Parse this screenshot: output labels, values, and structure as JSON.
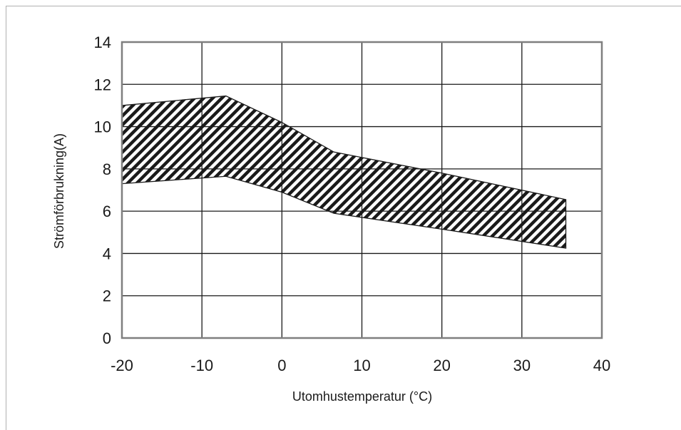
{
  "chart_data": {
    "type": "area",
    "xlabel": "Utomhustemperatur (°C)",
    "ylabel": "Strömförbrukning(A)",
    "xlim": [
      -20,
      40
    ],
    "ylim": [
      0,
      14
    ],
    "x_ticks": [
      "-20",
      "-10",
      "0",
      "10",
      "20",
      "30",
      "40"
    ],
    "y_ticks": [
      "0",
      "2",
      "4",
      "6",
      "8",
      "10",
      "12",
      "14"
    ],
    "grid": true,
    "series": [
      {
        "upper": [
          {
            "x": -20,
            "y": 11.0
          },
          {
            "x": -7,
            "y": 11.45
          },
          {
            "x": 0,
            "y": 10.2
          },
          {
            "x": 6.5,
            "y": 8.8
          },
          {
            "x": 20,
            "y": 7.8
          },
          {
            "x": 35.5,
            "y": 6.55
          }
        ],
        "lower": [
          {
            "x": -20,
            "y": 7.3
          },
          {
            "x": -7,
            "y": 7.65
          },
          {
            "x": 0,
            "y": 6.9
          },
          {
            "x": 6.5,
            "y": 5.9
          },
          {
            "x": 20,
            "y": 5.15
          },
          {
            "x": 35.5,
            "y": 4.25
          }
        ],
        "fill": "hatched",
        "color": "#1a1a1a"
      }
    ],
    "plot_border_color": "#7f7f7f",
    "grid_color": "#1a1a1a"
  }
}
